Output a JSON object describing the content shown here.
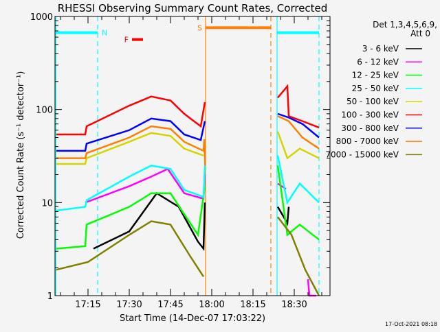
{
  "chart_data": {
    "type": "line",
    "title": "RHESSI Observing Summary Count Rates, Corrected",
    "xlabel": "Start Time (14-Dec-07 17:03:22)",
    "ylabel": "Corrected Count Rate (s⁻¹ detector⁻¹)",
    "yscale": "log",
    "ylim": [
      1,
      1000
    ],
    "xlim": [
      "17:03",
      "18:43"
    ],
    "x_ticks": [
      "17:15",
      "17:30",
      "17:45",
      "18:00",
      "18:15",
      "18:30"
    ],
    "y_ticks": [
      "1",
      "10",
      "100",
      "1000"
    ],
    "grid": false,
    "legend_placement": "right",
    "legend_header": [
      "Det 1,3,4,5,6,9,",
      "Att 0"
    ],
    "footer": "17-Oct-2021 08:18",
    "series": [
      {
        "name": "3 - 6 keV",
        "color": "#000000",
        "segments": [
          [
            [
              "17:17",
              3.2
            ],
            [
              "17:30",
              4.9
            ],
            [
              "17:40",
              12.6
            ],
            [
              "17:48",
              9
            ],
            [
              "17:55",
              3.8
            ],
            [
              "17:57",
              3.2
            ],
            [
              "17:57.5",
              10
            ]
          ],
          [
            [
              "18:24",
              9
            ],
            [
              "18:27.5",
              6
            ],
            [
              "18:28",
              9
            ]
          ]
        ]
      },
      {
        "name": "6 - 12 keV",
        "color": "#ff00ff",
        "segments": [
          [
            [
              "17:14",
              10
            ],
            [
              "17:30",
              15
            ],
            [
              "17:38",
              19
            ],
            [
              "17:44",
              23
            ],
            [
              "17:50",
              12.6
            ],
            [
              "17:57",
              11
            ],
            [
              "17:57.5",
              20
            ]
          ],
          [
            [
              "18:24",
              16
            ],
            [
              "18:27",
              14
            ]
          ],
          [
            [
              "18:35",
              1.5
            ],
            [
              "18:35.5",
              1
            ],
            [
              "18:38",
              1
            ]
          ]
        ]
      },
      {
        "name": "12 - 25 keV",
        "color": "#00ff00",
        "segments": [
          [
            [
              "17:03.5",
              3.2
            ],
            [
              "17:14",
              3.4
            ],
            [
              "17:14.5",
              5.8
            ],
            [
              "17:30",
              9
            ],
            [
              "17:38",
              12.6
            ],
            [
              "17:45",
              12.6
            ],
            [
              "17:50",
              7.5
            ],
            [
              "17:55",
              4.5
            ],
            [
              "17:57.5",
              15
            ]
          ],
          [
            [
              "18:24",
              25
            ],
            [
              "18:27.5",
              4.5
            ],
            [
              "18:32",
              5.8
            ],
            [
              "18:39",
              4
            ]
          ]
        ]
      },
      {
        "name": "25 - 50 keV",
        "color": "#00ffff",
        "segments": [
          [
            [
              "17:03.5",
              8.2
            ],
            [
              "17:14",
              9
            ],
            [
              "17:14.5",
              10.6
            ],
            [
              "17:30",
              19
            ],
            [
              "17:38",
              25
            ],
            [
              "17:45",
              23
            ],
            [
              "17:50",
              13.7
            ],
            [
              "17:57",
              11.5
            ],
            [
              "17:57.5",
              25
            ]
          ],
          [
            [
              "18:24",
              32
            ],
            [
              "18:27.5",
              10
            ],
            [
              "18:32",
              16
            ],
            [
              "18:39",
              10
            ]
          ]
        ]
      },
      {
        "name": "50 - 100 keV",
        "color": "#d4d400",
        "segments": [
          [
            [
              "17:03.5",
              26
            ],
            [
              "17:14",
              26
            ],
            [
              "17:14.5",
              30
            ],
            [
              "17:30",
              45
            ],
            [
              "17:38",
              56
            ],
            [
              "17:45",
              52
            ],
            [
              "17:50",
              38
            ],
            [
              "17:57",
              32
            ]
          ],
          [
            [
              "18:24",
              58
            ],
            [
              "18:27.5",
              30
            ],
            [
              "18:32",
              38
            ],
            [
              "18:39",
              30
            ]
          ]
        ]
      },
      {
        "name": "100 - 300 keV",
        "color": "#ff0000",
        "segments": [
          [
            [
              "17:03.5",
              54
            ],
            [
              "17:14",
              54
            ],
            [
              "17:14.5",
              66
            ],
            [
              "17:30",
              110
            ],
            [
              "17:38",
              138
            ],
            [
              "17:45",
              125
            ],
            [
              "17:50",
              90
            ],
            [
              "17:56",
              66
            ],
            [
              "17:57.5",
              120
            ]
          ],
          [
            [
              "18:24",
              134
            ],
            [
              "18:27.5",
              178
            ],
            [
              "18:28",
              85
            ],
            [
              "18:33",
              75
            ],
            [
              "18:39",
              64
            ]
          ]
        ]
      },
      {
        "name": "300 - 800 keV",
        "color": "#0000ff",
        "segments": [
          [
            [
              "17:03.5",
              36
            ],
            [
              "17:14",
              36
            ],
            [
              "17:14.5",
              43
            ],
            [
              "17:30",
              60
            ],
            [
              "17:38",
              80
            ],
            [
              "17:45",
              75
            ],
            [
              "17:50",
              54
            ],
            [
              "17:56",
              47
            ],
            [
              "17:57.5",
              75
            ]
          ],
          [
            [
              "18:24",
              90
            ],
            [
              "18:28",
              82
            ],
            [
              "18:33",
              70
            ],
            [
              "18:39",
              50
            ]
          ]
        ]
      },
      {
        "name": "800 - 7000 keV",
        "color": "#ff8000",
        "segments": [
          [
            [
              "17:03.5",
              30
            ],
            [
              "17:14",
              30
            ],
            [
              "17:14.5",
              34
            ],
            [
              "17:30",
              50
            ],
            [
              "17:38",
              66
            ],
            [
              "17:45",
              62
            ],
            [
              "17:50",
              45
            ],
            [
              "17:57",
              36
            ],
            [
              "17:57.3",
              48
            ],
            [
              "17:57.6",
              25
            ]
          ],
          [
            [
              "18:24",
              85
            ],
            [
              "18:28",
              75
            ],
            [
              "18:33",
              50
            ],
            [
              "18:39",
              38
            ]
          ]
        ]
      },
      {
        "name": "7000 - 15000 keV",
        "color": "#808000",
        "segments": [
          [
            [
              "17:03.5",
              1.9
            ],
            [
              "17:15",
              2.3
            ],
            [
              "17:30",
              4.5
            ],
            [
              "17:38",
              6.3
            ],
            [
              "17:45",
              5.8
            ],
            [
              "17:52",
              2.7
            ],
            [
              "17:57",
              1.6
            ]
          ],
          [
            [
              "18:24",
              7
            ],
            [
              "18:29",
              4.5
            ],
            [
              "18:34",
              1.9
            ],
            [
              "18:39",
              1
            ]
          ]
        ]
      }
    ],
    "markers": [
      {
        "label": "N",
        "color": "#00ffff",
        "start": "17:03.3",
        "end": "17:18.5",
        "level": 670
      },
      {
        "label": "",
        "color": "#00ffff",
        "start": "18:23.75",
        "end": "18:39",
        "level": 670
      },
      {
        "label": "S",
        "color": "#ff8000",
        "start": "17:57.75",
        "end": "18:21.5",
        "level": 757
      },
      {
        "label": "F",
        "color": "#ff0000",
        "start": "17:31",
        "end": "17:35",
        "level": 565
      }
    ],
    "vlines": [
      {
        "time": "17:03.3",
        "color": "#00ffff",
        "style": "solid"
      },
      {
        "time": "17:18.5",
        "color": "#00ffff",
        "style": "dashed"
      },
      {
        "time": "17:57.75",
        "color": "#ff8000",
        "style": "solid"
      },
      {
        "time": "18:21.5",
        "color": "#ff8000",
        "style": "dashed"
      },
      {
        "time": "18:23.75",
        "color": "#00ffff",
        "style": "solid"
      },
      {
        "time": "18:39",
        "color": "#00ffff",
        "style": "dashed"
      }
    ]
  }
}
